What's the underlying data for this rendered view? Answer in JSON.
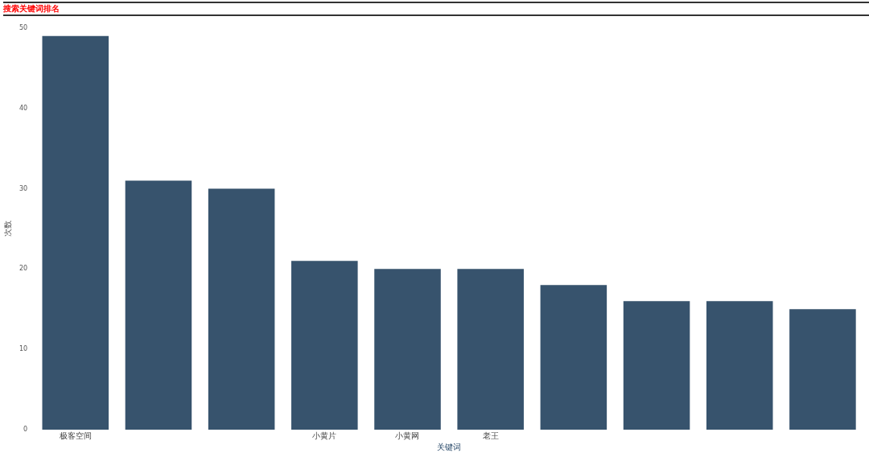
{
  "chart_data": {
    "type": "bar",
    "title": "搜索关键词排名",
    "xlabel": "关键词",
    "ylabel": "次数",
    "categories": [
      "极客空间",
      null,
      null,
      "小黄片",
      "小黄网",
      "老王",
      null,
      null,
      null,
      null
    ],
    "values": [
      49,
      31,
      30,
      21,
      20,
      20,
      18,
      16,
      16,
      15
    ],
    "color": "#37536d",
    "ylim": [
      0,
      50
    ],
    "yticks": [
      0,
      10,
      20,
      30,
      40,
      50
    ],
    "grid": false,
    "legend": false
  }
}
